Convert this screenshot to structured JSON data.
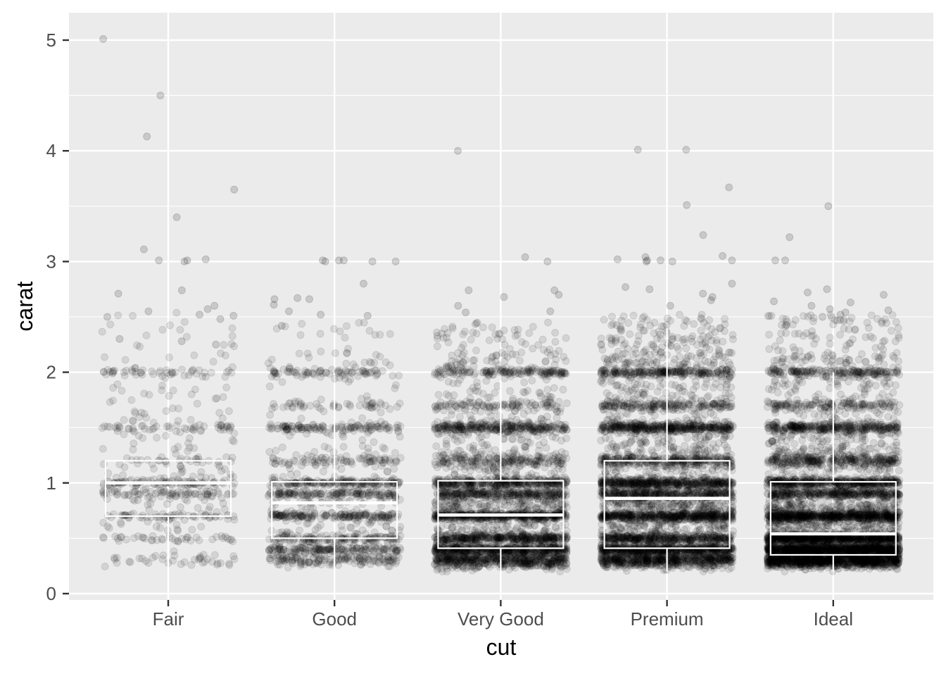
{
  "chart_data": {
    "type": "boxplot_with_jittered_points",
    "xlabel": "cut",
    "ylabel": "carat",
    "ylim": [
      0,
      5.25
    ],
    "y_ticks": [
      0,
      1,
      2,
      3,
      4,
      5
    ],
    "y_tick_labels": [
      "0",
      "1",
      "2",
      "3",
      "4",
      "5"
    ],
    "categories": [
      "Fair",
      "Good",
      "Very Good",
      "Premium",
      "Ideal"
    ],
    "grid": true,
    "legend": "none",
    "colors": {
      "panel_background": "#ebebeb",
      "grid_line": "#ffffff",
      "point": "#000000",
      "box_outline": "#ffffff"
    },
    "boxes": [
      {
        "category": "Fair",
        "min": 0.22,
        "q1": 0.7,
        "median": 1.0,
        "q3": 1.2,
        "max": 1.2
      },
      {
        "category": "Good",
        "min": 0.23,
        "q1": 0.5,
        "median": 0.82,
        "q3": 1.01,
        "max": 1.76
      },
      {
        "category": "Very Good",
        "min": 0.2,
        "q1": 0.41,
        "median": 0.71,
        "q3": 1.02,
        "max": 1.93
      },
      {
        "category": "Premium",
        "min": 0.2,
        "q1": 0.41,
        "median": 0.86,
        "q3": 1.2,
        "max": 2.4
      },
      {
        "category": "Ideal",
        "min": 0.2,
        "q1": 0.35,
        "median": 0.54,
        "q3": 1.01,
        "max": 2.0
      }
    ],
    "outliers": {
      "Fair": [
        5.01,
        4.5,
        4.13,
        3.65,
        3.4,
        3.02,
        3.01,
        3.01,
        3.0,
        3.11,
        2.74,
        2.71,
        2.6,
        2.57,
        2.55,
        2.52,
        2.5,
        2.51,
        2.48,
        2.3,
        2.28,
        2.25
      ],
      "Good": [
        3.01,
        3.01,
        3.0,
        3.01,
        3.0,
        3.0,
        2.8,
        2.66,
        2.67,
        2.66,
        2.61,
        2.55,
        2.52,
        2.51,
        2.42
      ],
      "Very Good": [
        4.0,
        3.04,
        3.0,
        2.74,
        2.74,
        2.7,
        2.68,
        2.6,
        2.55,
        2.54
      ],
      "Premium": [
        4.01,
        4.01,
        3.67,
        3.51,
        3.24,
        3.05,
        3.04,
        3.02,
        3.01,
        3.01,
        3.01,
        3.0,
        3.0,
        2.8,
        2.77,
        2.75,
        2.71,
        2.68,
        2.65,
        2.6
      ],
      "Ideal": [
        3.5,
        3.22,
        3.01,
        3.01,
        2.75,
        2.72,
        2.7,
        2.64,
        2.63,
        2.6,
        2.57,
        2.56,
        2.54,
        2.52,
        2.5
      ]
    },
    "point_bands": {
      "Fair": [
        [
          0.3,
          0.06,
          40
        ],
        [
          0.5,
          0.03,
          40
        ],
        [
          0.7,
          0.03,
          45
        ],
        [
          0.9,
          0.03,
          55
        ],
        [
          1.0,
          0.03,
          70
        ],
        [
          1.2,
          0.04,
          30
        ],
        [
          1.5,
          0.03,
          45
        ],
        [
          2.0,
          0.03,
          45
        ],
        [
          0.8,
          0.25,
          80
        ],
        [
          1.3,
          0.35,
          70
        ],
        [
          1.8,
          0.25,
          35
        ],
        [
          2.3,
          0.25,
          25
        ]
      ],
      "Good": [
        [
          0.31,
          0.06,
          150
        ],
        [
          0.4,
          0.03,
          120
        ],
        [
          0.5,
          0.03,
          110
        ],
        [
          0.7,
          0.03,
          150
        ],
        [
          0.9,
          0.03,
          130
        ],
        [
          1.0,
          0.03,
          150
        ],
        [
          1.2,
          0.04,
          60
        ],
        [
          1.5,
          0.03,
          110
        ],
        [
          1.7,
          0.03,
          40
        ],
        [
          2.0,
          0.03,
          70
        ],
        [
          0.6,
          0.25,
          120
        ],
        [
          1.15,
          0.35,
          110
        ],
        [
          1.8,
          0.3,
          45
        ],
        [
          2.25,
          0.2,
          30
        ]
      ],
      "Very Good": [
        [
          0.3,
          0.07,
          500
        ],
        [
          0.4,
          0.04,
          400
        ],
        [
          0.5,
          0.04,
          330
        ],
        [
          0.7,
          0.04,
          400
        ],
        [
          0.9,
          0.04,
          250
        ],
        [
          1.0,
          0.04,
          300
        ],
        [
          1.2,
          0.06,
          150
        ],
        [
          1.5,
          0.04,
          220
        ],
        [
          1.7,
          0.04,
          80
        ],
        [
          2.0,
          0.03,
          130
        ],
        [
          0.6,
          0.28,
          350
        ],
        [
          1.15,
          0.4,
          300
        ],
        [
          1.8,
          0.35,
          150
        ],
        [
          2.25,
          0.2,
          80
        ]
      ],
      "Premium": [
        [
          0.3,
          0.07,
          550
        ],
        [
          0.4,
          0.04,
          450
        ],
        [
          0.5,
          0.04,
          350
        ],
        [
          0.7,
          0.04,
          450
        ],
        [
          0.9,
          0.04,
          300
        ],
        [
          1.0,
          0.04,
          400
        ],
        [
          1.2,
          0.06,
          250
        ],
        [
          1.5,
          0.04,
          320
        ],
        [
          1.7,
          0.04,
          150
        ],
        [
          2.0,
          0.03,
          200
        ],
        [
          0.6,
          0.28,
          400
        ],
        [
          1.15,
          0.4,
          400
        ],
        [
          1.8,
          0.35,
          250
        ],
        [
          2.3,
          0.22,
          160
        ]
      ],
      "Ideal": [
        [
          0.3,
          0.07,
          900
        ],
        [
          0.4,
          0.04,
          700
        ],
        [
          0.5,
          0.04,
          600
        ],
        [
          0.7,
          0.04,
          500
        ],
        [
          0.9,
          0.04,
          300
        ],
        [
          1.0,
          0.04,
          400
        ],
        [
          1.2,
          0.06,
          250
        ],
        [
          1.5,
          0.04,
          250
        ],
        [
          1.7,
          0.04,
          120
        ],
        [
          2.0,
          0.03,
          150
        ],
        [
          0.55,
          0.28,
          700
        ],
        [
          1.15,
          0.4,
          400
        ],
        [
          1.8,
          0.35,
          180
        ],
        [
          2.3,
          0.22,
          110
        ]
      ]
    }
  }
}
